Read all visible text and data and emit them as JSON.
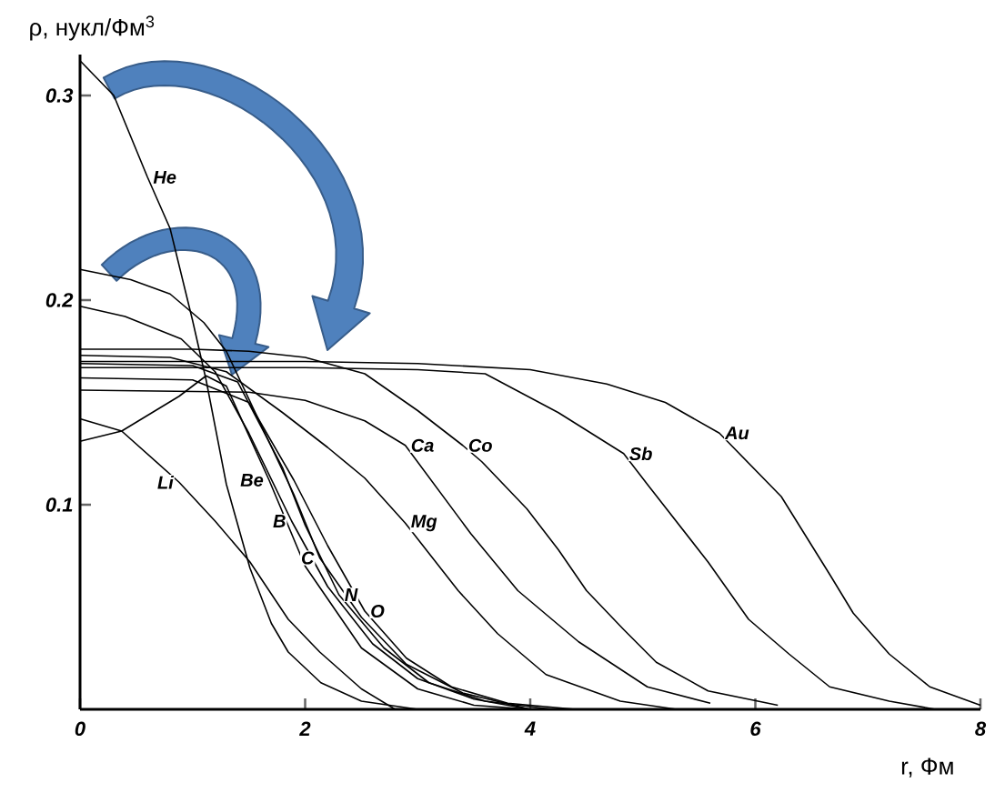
{
  "chart_data": {
    "type": "line",
    "xlabel": "r, Фм",
    "ylabel": "ρ, нукл/Фм$^{3}$",
    "xlim": [
      0,
      8
    ],
    "ylim": [
      0,
      0.32
    ],
    "xticks": [
      0,
      2,
      4,
      6,
      8
    ],
    "yticks": [
      0.1,
      0.2,
      0.3
    ],
    "series": [
      {
        "name": "He",
        "color": "#000000",
        "x": [
          0,
          0.3,
          0.6,
          0.8,
          1.0,
          1.12,
          1.3,
          1.51,
          1.7,
          1.85,
          2.14,
          2.5,
          3.0
        ],
        "values": [
          0.317,
          0.3,
          0.26,
          0.235,
          0.19,
          0.161,
          0.11,
          0.069,
          0.042,
          0.028,
          0.013,
          0.004,
          0
        ]
      },
      {
        "name": "Li",
        "color": "#000000",
        "x": [
          0,
          0.37,
          0.88,
          1.2,
          1.51,
          1.85,
          2.13,
          2.5,
          2.8
        ],
        "values": [
          0.142,
          0.136,
          0.111,
          0.092,
          0.072,
          0.044,
          0.028,
          0.01,
          0
        ]
      },
      {
        "name": "Be",
        "color": "#000000",
        "x": [
          0,
          0.37,
          0.88,
          1.12,
          1.3,
          1.68,
          2.0,
          2.5,
          3.0,
          3.5,
          4.0
        ],
        "values": [
          0.131,
          0.136,
          0.153,
          0.163,
          0.158,
          0.112,
          0.07,
          0.03,
          0.01,
          0.002,
          0
        ]
      },
      {
        "name": "B",
        "color": "#000000",
        "x": [
          0,
          0.4,
          0.9,
          1.2,
          1.5,
          1.88,
          2.2,
          2.6,
          3.0,
          3.5,
          4.0
        ],
        "values": [
          0.197,
          0.192,
          0.181,
          0.165,
          0.135,
          0.092,
          0.06,
          0.032,
          0.015,
          0.005,
          0
        ]
      },
      {
        "name": "C",
        "color": "#000000",
        "x": [
          0,
          0.45,
          0.8,
          1.1,
          1.3,
          1.6,
          1.9,
          2.13,
          2.5,
          2.9,
          3.4,
          4.0
        ],
        "values": [
          0.215,
          0.21,
          0.203,
          0.189,
          0.175,
          0.14,
          0.105,
          0.074,
          0.045,
          0.022,
          0.008,
          0
        ]
      },
      {
        "name": "N",
        "color": "#000000",
        "x": [
          0,
          1.0,
          1.4,
          1.8,
          2.0,
          2.3,
          2.7,
          3.1,
          3.6,
          4.2
        ],
        "values": [
          0.169,
          0.168,
          0.16,
          0.118,
          0.09,
          0.056,
          0.03,
          0.013,
          0.004,
          0
        ]
      },
      {
        "name": "O",
        "color": "#000000",
        "x": [
          0,
          1.0,
          1.5,
          1.9,
          2.2,
          2.53,
          2.9,
          3.3,
          3.8,
          4.4
        ],
        "values": [
          0.162,
          0.161,
          0.15,
          0.112,
          0.08,
          0.048,
          0.025,
          0.011,
          0.003,
          0
        ]
      },
      {
        "name": "Mg",
        "color": "#000000",
        "x": [
          0,
          0.8,
          1.3,
          1.8,
          2.2,
          2.53,
          2.89,
          3.36,
          3.71,
          4.14,
          4.8,
          5.3
        ],
        "values": [
          0.173,
          0.172,
          0.165,
          0.145,
          0.128,
          0.113,
          0.091,
          0.058,
          0.037,
          0.017,
          0.004,
          0
        ]
      },
      {
        "name": "Ca",
        "color": "#000000",
        "x": [
          0,
          1.5,
          2.0,
          2.53,
          2.89,
          3.47,
          3.89,
          4.43,
          5.04,
          5.6
        ],
        "values": [
          0.156,
          0.155,
          0.151,
          0.141,
          0.129,
          0.086,
          0.058,
          0.033,
          0.011,
          0.003
        ]
      },
      {
        "name": "Co",
        "color": "#000000",
        "x": [
          0,
          1.0,
          1.5,
          2.0,
          2.53,
          3.0,
          3.4,
          3.57,
          3.97,
          4.25,
          4.5,
          4.83,
          5.12,
          5.58,
          6.2
        ],
        "values": [
          0.176,
          0.176,
          0.175,
          0.172,
          0.164,
          0.146,
          0.129,
          0.121,
          0.098,
          0.078,
          0.058,
          0.039,
          0.023,
          0.009,
          0.002
        ]
      },
      {
        "name": "Sb",
        "color": "#000000",
        "x": [
          0,
          2.0,
          3.0,
          3.6,
          4.25,
          4.83,
          5.04,
          5.58,
          5.94,
          6.3,
          6.66,
          7.19,
          7.6
        ],
        "values": [
          0.167,
          0.167,
          0.166,
          0.164,
          0.145,
          0.125,
          0.11,
          0.072,
          0.044,
          0.027,
          0.011,
          0.004,
          0
        ]
      },
      {
        "name": "Au",
        "color": "#000000",
        "x": [
          0,
          2.0,
          3.0,
          4.0,
          4.68,
          5.2,
          5.68,
          6.23,
          6.66,
          6.87,
          7.19,
          7.55,
          8.0
        ],
        "values": [
          0.17,
          0.17,
          0.169,
          0.166,
          0.159,
          0.15,
          0.135,
          0.104,
          0.066,
          0.047,
          0.027,
          0.011,
          0.002
        ]
      }
    ]
  }
}
